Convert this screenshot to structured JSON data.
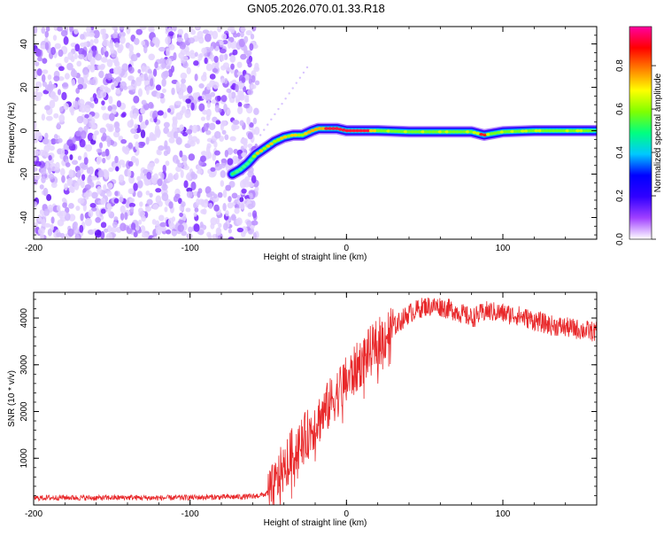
{
  "title": "GN05.2026.070.01.33.R18",
  "chart_data": [
    {
      "type": "heatmap",
      "xlabel": "Height of straight line (km)",
      "ylabel": "Frequency (Hz)",
      "xlim": [
        -200,
        160
      ],
      "ylim": [
        -50,
        48
      ],
      "x_ticks": [
        -200,
        -100,
        0,
        100
      ],
      "y_ticks": [
        -40,
        -20,
        0,
        20,
        40
      ],
      "noise_region_x": [
        -200,
        -57
      ],
      "ridge": {
        "x": [
          -73,
          -68,
          -63,
          -58,
          -52,
          -46,
          -40,
          -34,
          -28,
          -22,
          -18,
          -12,
          -6,
          0,
          10,
          20,
          40,
          60,
          80,
          88,
          100,
          120,
          140,
          160
        ],
        "y": [
          -20,
          -18,
          -15,
          -11,
          -8,
          -5,
          -3,
          -2,
          -2,
          0,
          1,
          1,
          1,
          0,
          0,
          0,
          -0.5,
          -0.5,
          -0.5,
          -2,
          -0.5,
          0,
          0,
          0
        ]
      },
      "colorbar": {
        "label": "Normalized spectral amplitude",
        "min": 0.0,
        "max": 0.98,
        "ticks": [
          "0.0",
          "0.2",
          "0.4",
          "0.6",
          "0.8"
        ],
        "tick_values": [
          0.0,
          0.2,
          0.4,
          0.6,
          0.8
        ],
        "colors": [
          "#ffffff",
          "#a040ff",
          "#3000ff",
          "#0000ff",
          "#00c8ff",
          "#00ff80",
          "#80ff00",
          "#ffff00",
          "#ff8000",
          "#ff0000",
          "#ff00a0"
        ]
      }
    },
    {
      "type": "line",
      "xlabel": "Height of straight line (km)",
      "ylabel": "SNR (10 * v/v)",
      "xlim": [
        -200,
        160
      ],
      "ylim": [
        0,
        4550
      ],
      "x_ticks": [
        -200,
        -100,
        0,
        100
      ],
      "y_ticks": [
        1000,
        2000,
        3000,
        4000
      ],
      "color": "#e8282a",
      "series": [
        {
          "x": [
            -200,
            -180,
            -160,
            -140,
            -120,
            -100,
            -80,
            -60,
            -52,
            -48,
            -45,
            -42,
            -38,
            -35,
            -30,
            -25,
            -20,
            -15,
            -10,
            -5,
            0,
            5,
            10,
            20,
            30,
            40,
            50,
            60,
            70,
            80,
            90,
            100,
            110,
            120,
            130,
            140,
            150,
            160
          ],
          "values": [
            150,
            160,
            150,
            160,
            150,
            160,
            170,
            180,
            230,
            300,
            450,
            700,
            900,
            1100,
            1300,
            1500,
            1750,
            1950,
            2200,
            2450,
            2650,
            2850,
            3100,
            3450,
            3800,
            4100,
            4250,
            4250,
            4150,
            4000,
            4150,
            4100,
            4050,
            3950,
            3850,
            3800,
            3750,
            3700
          ]
        }
      ]
    }
  ]
}
